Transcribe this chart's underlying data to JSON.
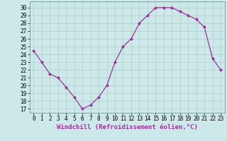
{
  "x": [
    0,
    1,
    2,
    3,
    4,
    5,
    6,
    7,
    8,
    9,
    10,
    11,
    12,
    13,
    14,
    15,
    16,
    17,
    18,
    19,
    20,
    21,
    22,
    23
  ],
  "y": [
    24.5,
    23.0,
    21.5,
    21.0,
    19.8,
    18.5,
    17.0,
    17.5,
    18.5,
    20.0,
    23.0,
    25.0,
    26.0,
    28.0,
    29.0,
    30.0,
    30.0,
    30.0,
    29.5,
    29.0,
    28.5,
    27.5,
    23.5,
    22.0
  ],
  "line_color": "#993399",
  "marker": "D",
  "marker_size": 2,
  "bg_color": "#cce8e8",
  "grid_color": "#b0cccc",
  "xlabel": "Windchill (Refroidissement éolien,°C)",
  "xlabel_color": "#993399",
  "xlabel_fontsize": 6.5,
  "ytick_labels": [
    "17",
    "18",
    "19",
    "20",
    "21",
    "22",
    "23",
    "24",
    "25",
    "26",
    "27",
    "28",
    "29",
    "30"
  ],
  "ytick_vals": [
    17,
    18,
    19,
    20,
    21,
    22,
    23,
    24,
    25,
    26,
    27,
    28,
    29,
    30
  ],
  "xlim": [
    -0.5,
    23.5
  ],
  "ylim": [
    16.5,
    30.8
  ],
  "tick_fontsize": 5.5
}
